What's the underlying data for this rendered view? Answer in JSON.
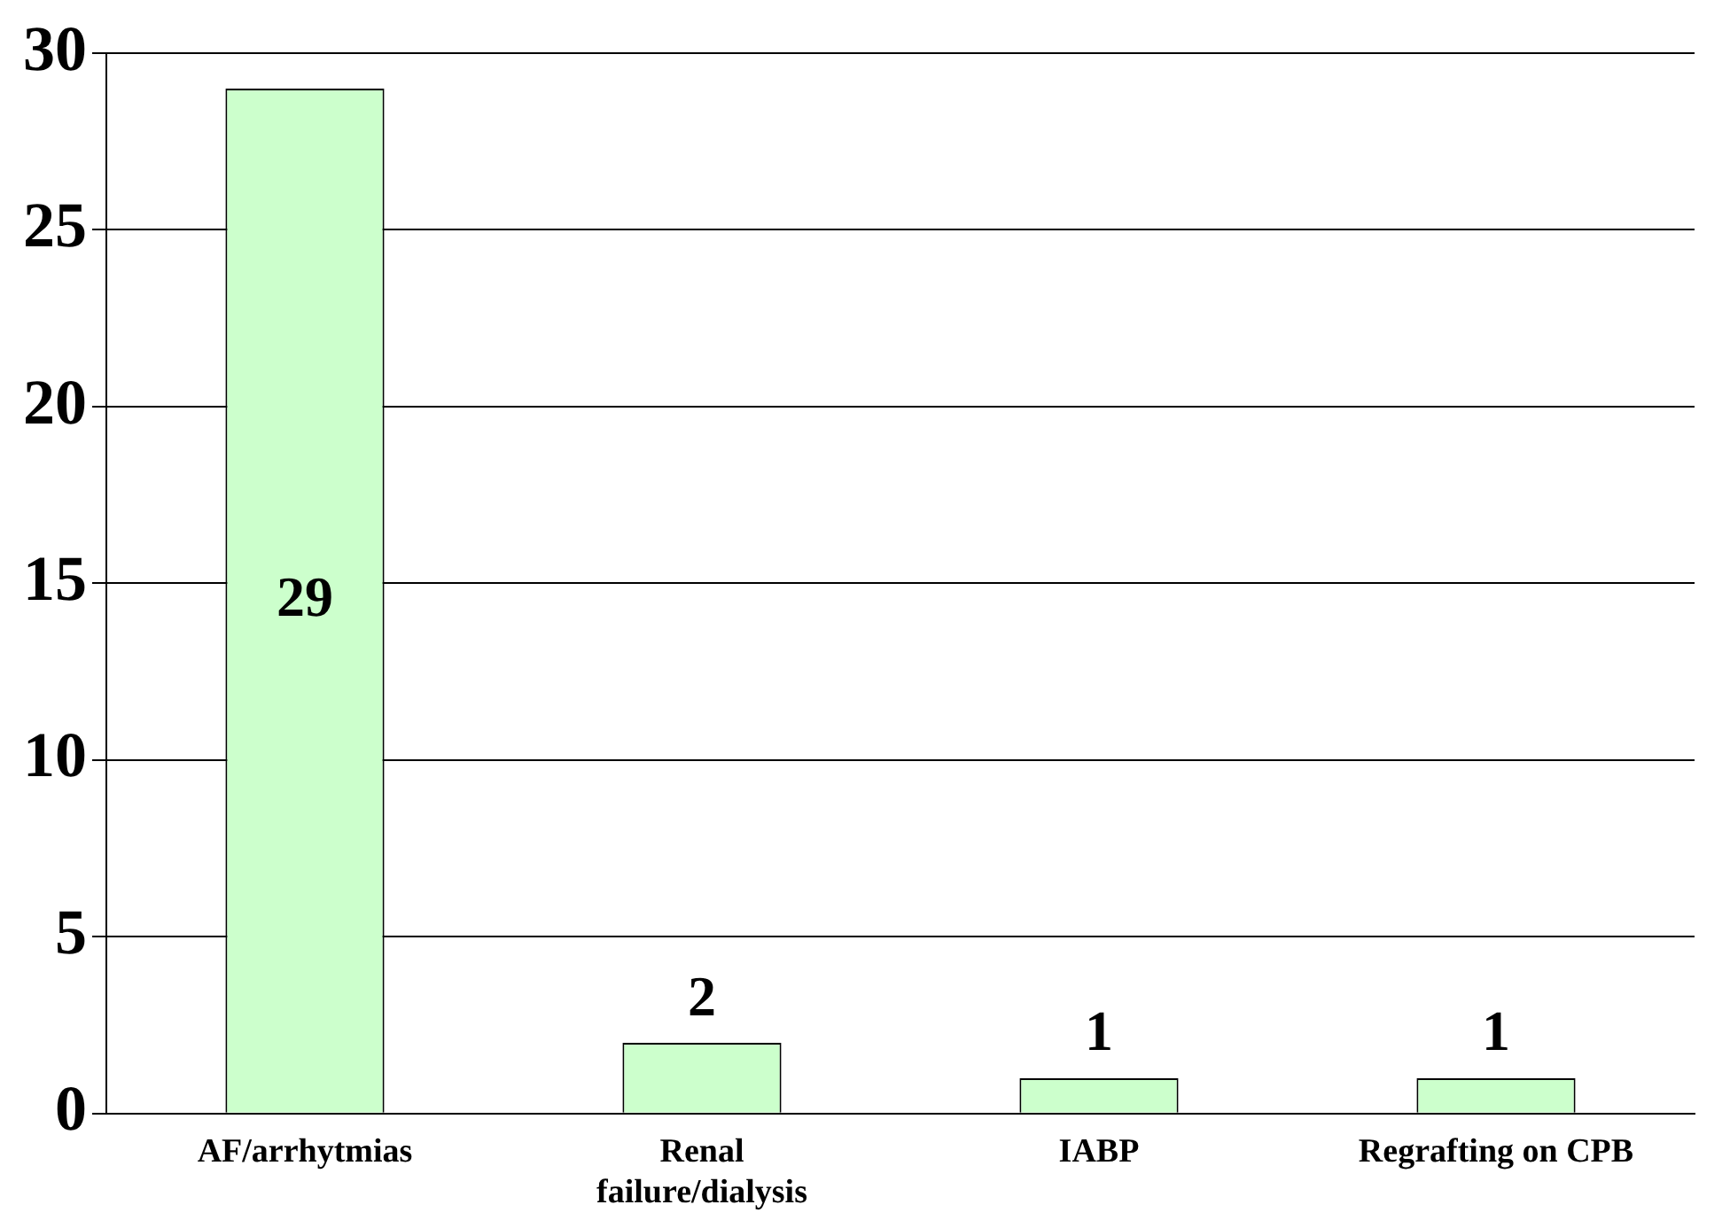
{
  "chart_data": {
    "type": "bar",
    "categories": [
      "AF/arrhytmias",
      "Renal failure/dialysis",
      "IABP",
      "Regrafting on CPB"
    ],
    "values": [
      29,
      2,
      1,
      1
    ],
    "color": "#ccffcc",
    "ylim": [
      0,
      30
    ],
    "yticks": [
      0,
      5,
      10,
      15,
      20,
      25,
      30
    ],
    "grid": "y",
    "data_labels": true
  }
}
